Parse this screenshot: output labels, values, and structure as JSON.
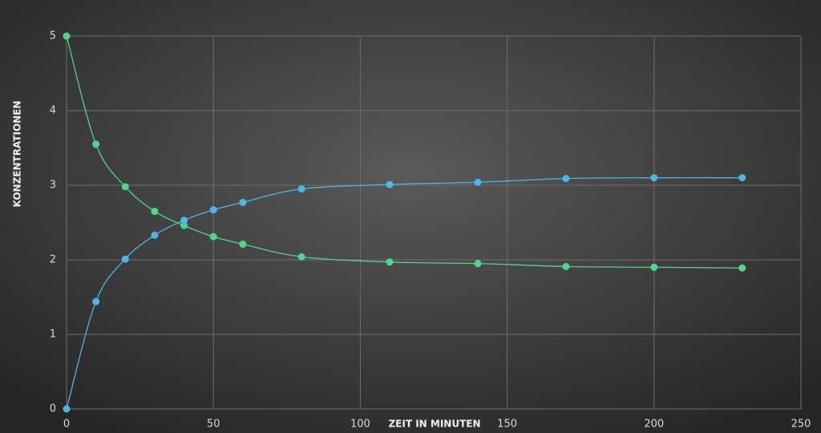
{
  "chart_data": {
    "type": "line",
    "x_label": "ZEIT IN MINUTEN",
    "y_label": "KONZENTRATIONEN",
    "x": [
      0,
      10,
      20,
      30,
      40,
      50,
      60,
      80,
      110,
      140,
      170,
      200,
      230
    ],
    "series": [
      {
        "color": "#4fd68a",
        "values": [
          5,
          3.55,
          2.98,
          2.65,
          2.46,
          2.31,
          2.21,
          2.04,
          1.97,
          1.95,
          1.91,
          1.9,
          1.89
        ]
      },
      {
        "color": "#4db6e4",
        "values": [
          0,
          1.44,
          2.01,
          2.33,
          2.53,
          2.67,
          2.77,
          2.95,
          3.01,
          3.04,
          3.09,
          3.1,
          3.1
        ]
      }
    ],
    "xlim": [
      0,
      250
    ],
    "xticks": [
      0,
      50,
      100,
      150,
      200,
      250
    ],
    "ylim": [
      0,
      5
    ],
    "yticks": [
      0,
      1,
      2,
      3,
      4,
      5
    ],
    "grid": true
  }
}
